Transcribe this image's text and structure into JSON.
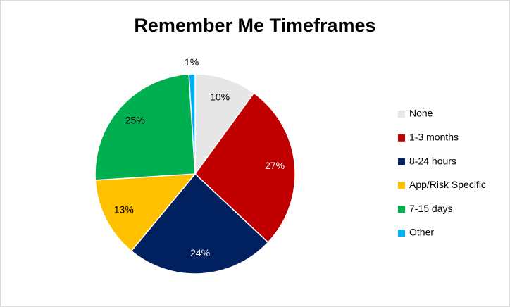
{
  "chart_data": {
    "type": "pie",
    "title": "Remember Me Timeframes",
    "categories": [
      "None",
      "1-3 months",
      "8-24 hours",
      "App/Risk Specific",
      "7-15 days",
      "Other"
    ],
    "values": [
      10,
      27,
      24,
      13,
      25,
      1
    ],
    "value_labels": [
      "10%",
      "27%",
      "24%",
      "13%",
      "25%",
      "1%"
    ],
    "colors": [
      "#e7e6e6",
      "#c00000",
      "#002060",
      "#ffc000",
      "#00b050",
      "#00b0f0"
    ],
    "legend": "right"
  }
}
